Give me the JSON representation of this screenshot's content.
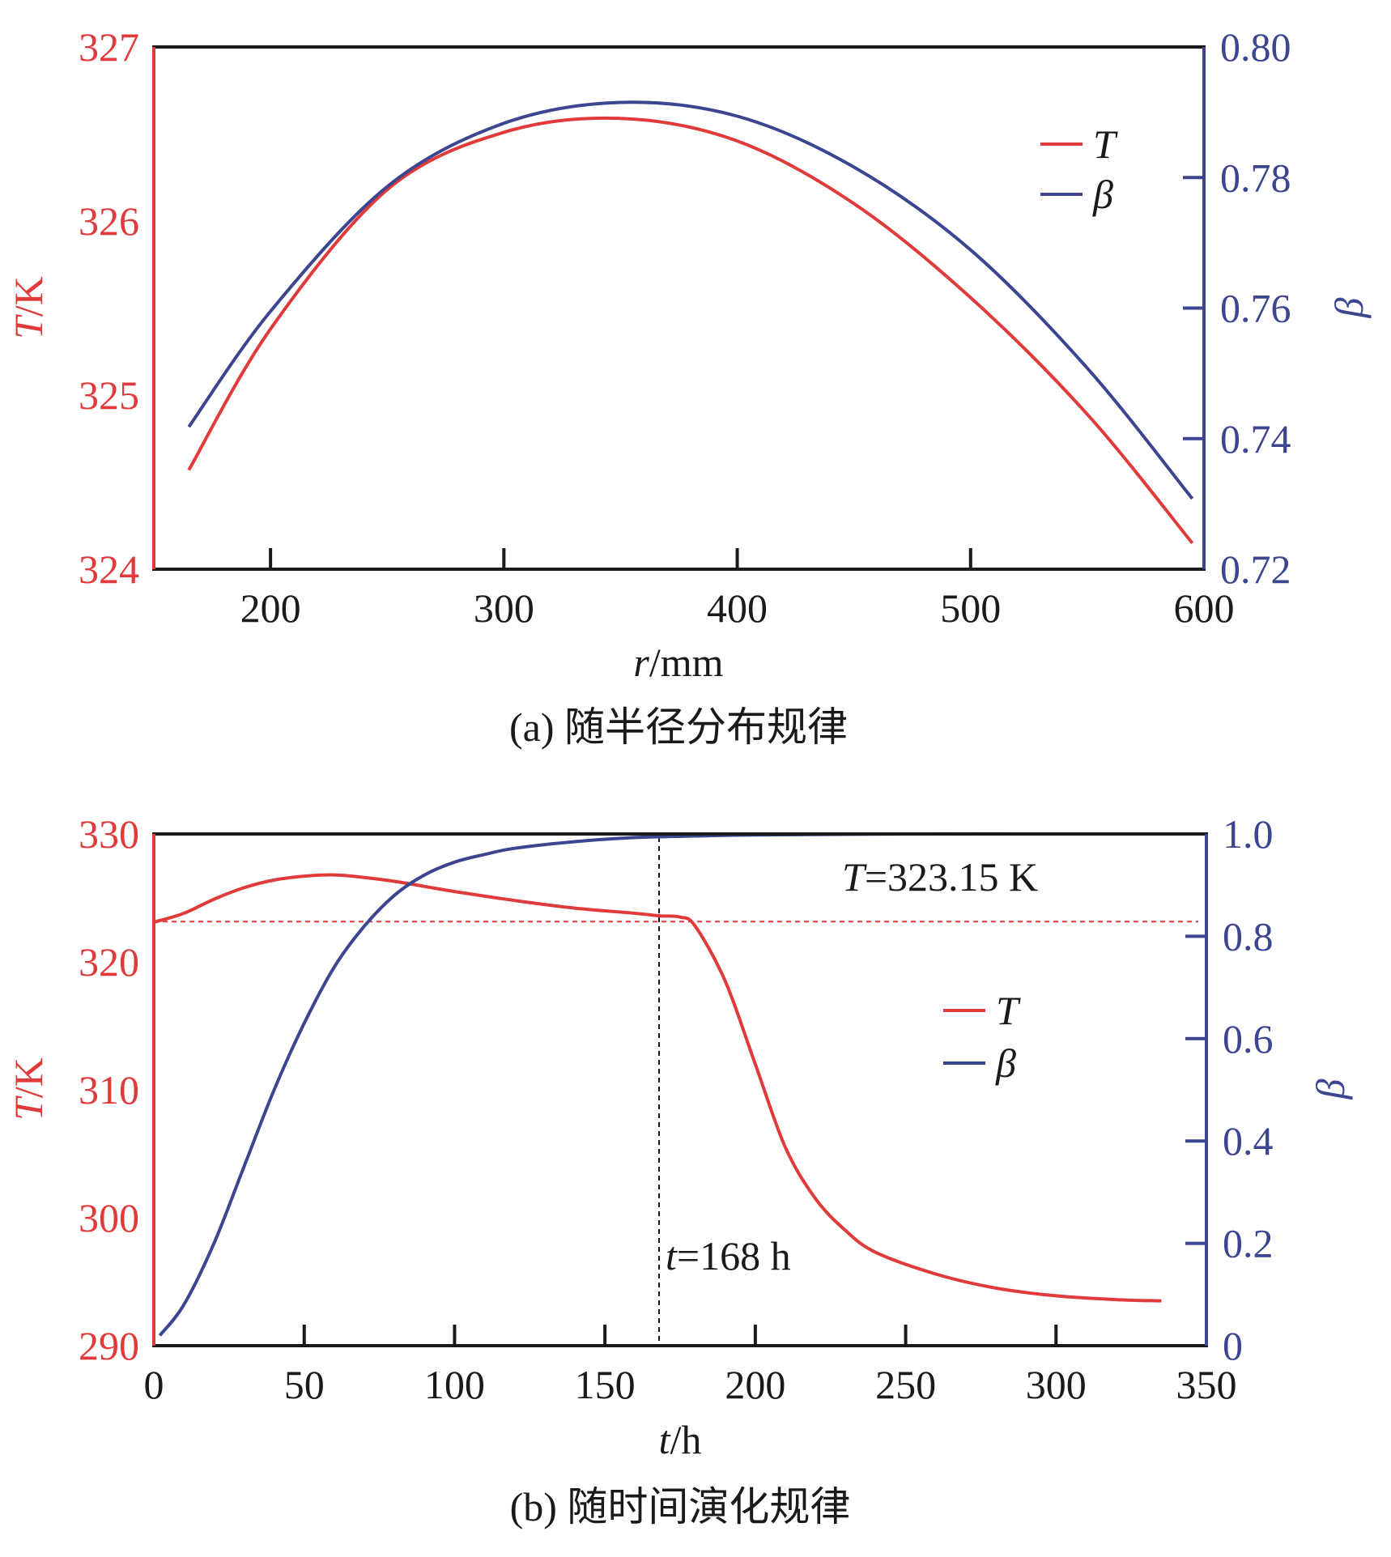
{
  "colors": {
    "T": "#e03a3a",
    "beta": "#3b4590",
    "axis": "#1a1a1a"
  },
  "chart_data": [
    {
      "id": "a",
      "type": "line",
      "caption": "(a) 随半径分布规律",
      "xlabel_italic": "r",
      "xlabel_unit": "/mm",
      "ylabel_left_italic": "T",
      "ylabel_left_unit": "/K",
      "ylabel_right_italic": "β",
      "xlim": [
        150,
        600
      ],
      "ylim_left": [
        324,
        327
      ],
      "ylim_right": [
        0.72,
        0.8
      ],
      "xticks": [
        200,
        300,
        400,
        500,
        600
      ],
      "yticks_left": [
        324,
        325,
        326,
        327
      ],
      "yticks_right": [
        0.72,
        0.74,
        0.76,
        0.78,
        0.8
      ],
      "yticklabels_right": [
        "0.72",
        "0.74",
        "0.76",
        "0.78",
        "0.80"
      ],
      "legend": {
        "position": "top-right",
        "entries": [
          "T",
          "β"
        ]
      },
      "series": [
        {
          "name": "T",
          "axis": "left",
          "color": "#e03a3a",
          "x": [
            165,
            200,
            250,
            300,
            350,
            400,
            450,
            500,
            550,
            595
          ],
          "y": [
            324.57,
            325.38,
            326.18,
            326.51,
            326.59,
            326.46,
            326.1,
            325.56,
            324.89,
            324.15
          ]
        },
        {
          "name": "β",
          "axis": "right",
          "color": "#3b4590",
          "x": [
            165,
            200,
            250,
            300,
            350,
            400,
            450,
            500,
            550,
            595
          ],
          "y": [
            0.7418,
            0.7595,
            0.7786,
            0.7883,
            0.7915,
            0.7894,
            0.7816,
            0.7689,
            0.7508,
            0.7308
          ]
        }
      ]
    },
    {
      "id": "b",
      "type": "line",
      "caption": "(b) 随时间演化规律",
      "xlabel_italic": "t",
      "xlabel_unit": "/h",
      "ylabel_left_italic": "T",
      "ylabel_left_unit": "/K",
      "ylabel_right_italic": "β",
      "xlim": [
        0,
        350
      ],
      "ylim_left": [
        290,
        330
      ],
      "ylim_right": [
        0,
        1.0
      ],
      "xticks": [
        0,
        50,
        100,
        150,
        200,
        250,
        300,
        350
      ],
      "yticks_left": [
        290,
        300,
        310,
        320,
        330
      ],
      "yticks_right": [
        0,
        0.2,
        0.4,
        0.6,
        0.8,
        1.0
      ],
      "yticklabels_right": [
        "0",
        "0.2",
        "0.4",
        "0.6",
        "0.8",
        "1.0"
      ],
      "legend": {
        "position": "center-right",
        "entries": [
          "T",
          "β"
        ]
      },
      "annotations": [
        {
          "text_italic": "T",
          "text": "=323.15 K",
          "type": "hline",
          "value": 323.15,
          "axis": "left"
        },
        {
          "text_italic": "t",
          "text": "=168 h",
          "type": "vline",
          "value": 168
        }
      ],
      "series": [
        {
          "name": "T",
          "axis": "left",
          "color": "#e03a3a",
          "x": [
            0,
            10,
            20,
            30,
            40,
            50,
            60,
            70,
            80,
            90,
            100,
            120,
            140,
            160,
            168,
            175,
            180,
            190,
            200,
            210,
            220,
            230,
            240,
            260,
            280,
            300,
            320,
            335
          ],
          "y": [
            323.1,
            323.8,
            324.9,
            325.8,
            326.4,
            326.7,
            326.8,
            326.6,
            326.3,
            325.9,
            325.5,
            324.8,
            324.2,
            323.8,
            323.6,
            323.5,
            322.8,
            318.5,
            312.0,
            305.5,
            301.5,
            299.0,
            297.3,
            295.6,
            294.5,
            293.9,
            293.6,
            293.5
          ]
        },
        {
          "name": "β",
          "axis": "right",
          "color": "#3b4590",
          "x": [
            2,
            10,
            20,
            30,
            40,
            50,
            60,
            70,
            80,
            90,
            100,
            110,
            120,
            140,
            160,
            180,
            200,
            250,
            300,
            335
          ],
          "y": [
            0.02,
            0.08,
            0.2,
            0.35,
            0.5,
            0.63,
            0.74,
            0.82,
            0.88,
            0.92,
            0.945,
            0.96,
            0.972,
            0.985,
            0.993,
            0.996,
            0.998,
            1.0,
            1.0,
            1.0
          ]
        }
      ]
    }
  ]
}
